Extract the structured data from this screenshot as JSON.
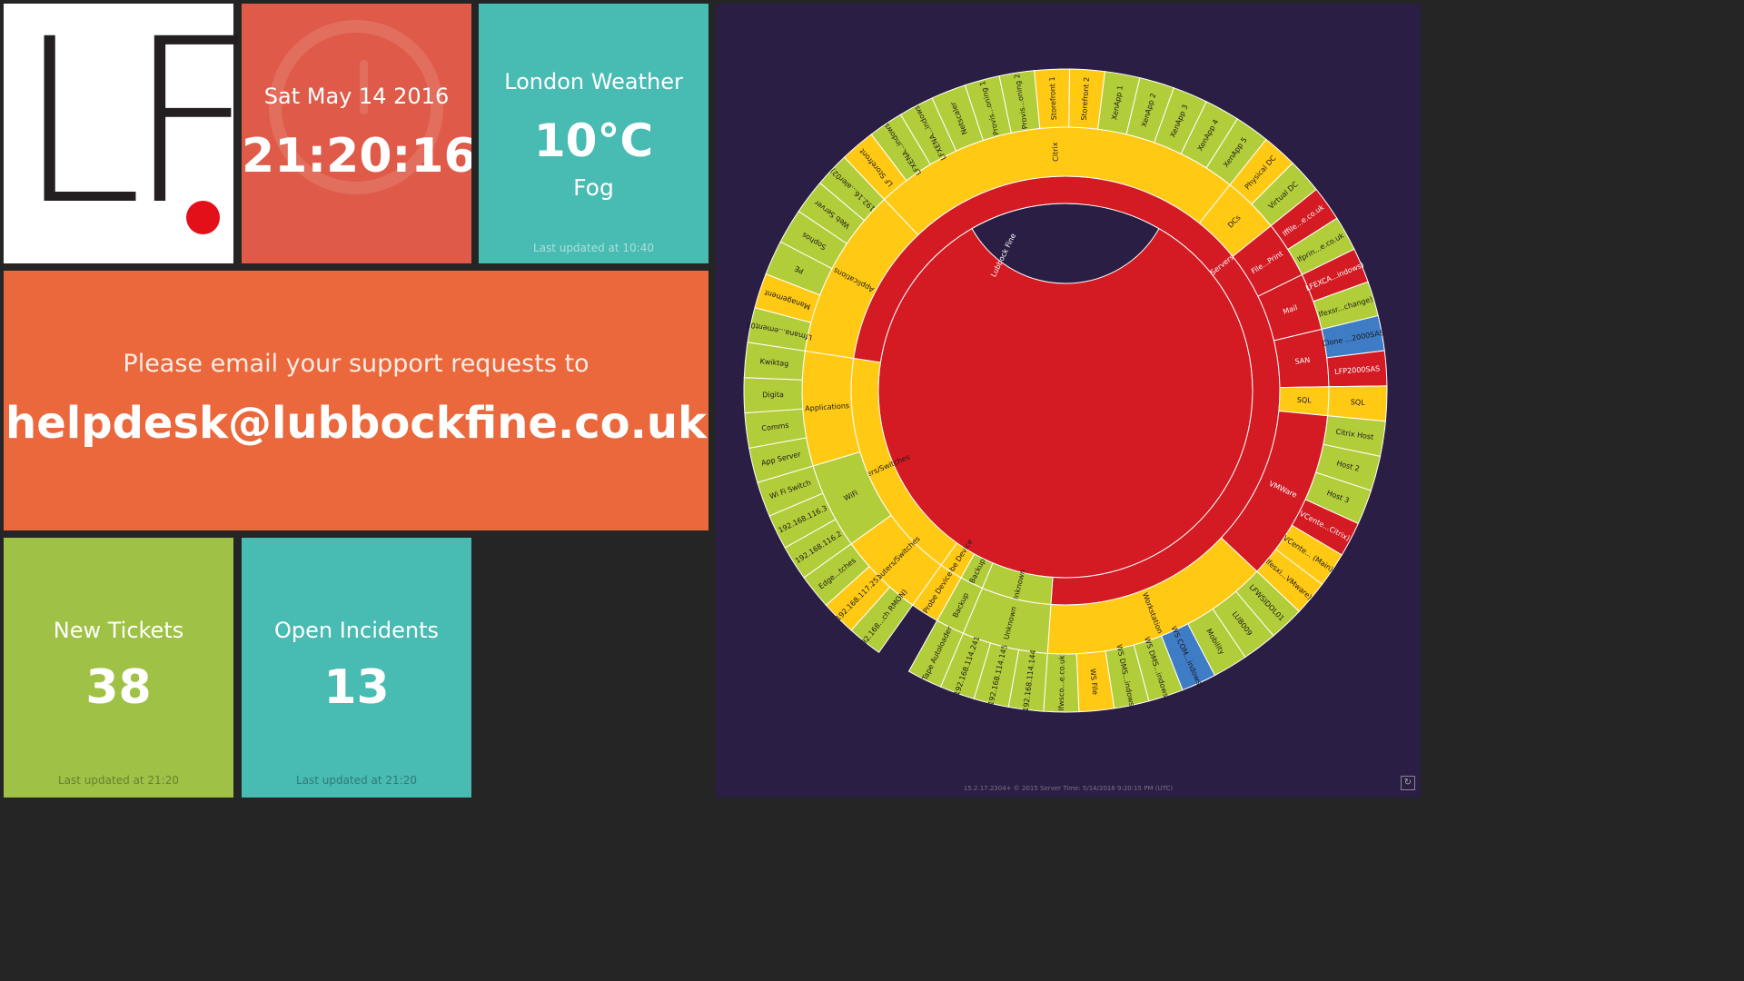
{
  "logo": {
    "letters": "LF"
  },
  "clock": {
    "date": "Sat May 14 2016",
    "time": "21:20:16"
  },
  "weather": {
    "title": "London Weather",
    "temp": "10°C",
    "condition": "Fog",
    "updated": "Last updated at 10:40"
  },
  "email": {
    "message": "Please email your support requests to",
    "address": "helpdesk@lubbockfine.co.uk"
  },
  "tickets": {
    "label": "New Tickets",
    "value": "38",
    "updated": "Last updated at 21:20"
  },
  "incidents": {
    "label": "Open Incidents",
    "value": "13",
    "updated": "Last updated at 21:20"
  },
  "footer": {
    "text": "15.2.17.2304+ © 2015 Server Time: 5/14/2016 9:20:15 PM (UTC)"
  },
  "colors": {
    "green": "#b2cd3a",
    "yellow": "#ffc914",
    "red": "#d41a22",
    "blue": "#3e7cc6",
    "panel": "#2b1e44"
  },
  "sunburst": {
    "root": "Lubbock Fine",
    "groups": [
      {
        "name": "Servers",
        "color": "red",
        "children": [
          {
            "name": "Applications",
            "color": "yellow",
            "children": [
              {
                "name": "Lfmana...ement02",
                "color": "green"
              },
              {
                "name": "Management",
                "color": "yellow"
              },
              {
                "name": "PE",
                "color": "green"
              },
              {
                "name": "Sophos",
                "color": "green"
              },
              {
                "name": "Web Server",
                "color": "green"
              },
              {
                "name": "192.16...aler02)",
                "color": "green"
              }
            ]
          },
          {
            "name": "Citrix",
            "color": "yellow",
            "children": [
              {
                "name": "LF Storefront",
                "color": "yellow"
              },
              {
                "name": "LFXENA...indows)",
                "color": "green"
              },
              {
                "name": "LFXENA...indows)",
                "color": "green"
              },
              {
                "name": "Netscaler",
                "color": "green"
              },
              {
                "name": "Provis...oning 1",
                "color": "green"
              },
              {
                "name": "Provis...oning 2",
                "color": "green"
              },
              {
                "name": "Storefront 1",
                "color": "yellow"
              },
              {
                "name": "Storefront 2",
                "color": "yellow"
              },
              {
                "name": "XenApp 1",
                "color": "green"
              },
              {
                "name": "XenApp 2",
                "color": "green"
              },
              {
                "name": "XenApp 3",
                "color": "green"
              },
              {
                "name": "XenApp 4",
                "color": "green"
              },
              {
                "name": "XenApp 5",
                "color": "green"
              }
            ]
          },
          {
            "name": "DCs",
            "color": "yellow",
            "children": [
              {
                "name": "Physical DC",
                "color": "yellow"
              },
              {
                "name": "Virtual DC",
                "color": "green"
              }
            ]
          },
          {
            "name": "File...Print",
            "color": "red",
            "children": [
              {
                "name": "lffile...e.co.uk",
                "color": "red"
              },
              {
                "name": "lfprin...e.co.uk",
                "color": "green"
              }
            ]
          },
          {
            "name": "Mail",
            "color": "red",
            "children": [
              {
                "name": "LFEXCA...indows)",
                "color": "red"
              },
              {
                "name": "lfexsr...change)",
                "color": "green"
              }
            ]
          },
          {
            "name": "SAN",
            "color": "red",
            "children": [
              {
                "name": "Clone ...2000SAS",
                "color": "blue"
              },
              {
                "name": "LFP2000SAS",
                "color": "red"
              }
            ]
          },
          {
            "name": "SQL",
            "color": "yellow",
            "children": [
              {
                "name": "SQL",
                "color": "yellow"
              }
            ]
          },
          {
            "name": "VMWare",
            "color": "red",
            "children": [
              {
                "name": "Citrix Host",
                "color": "green"
              },
              {
                "name": "Host 2",
                "color": "green"
              },
              {
                "name": "Host 3",
                "color": "green"
              },
              {
                "name": "VCente...Citrix)",
                "color": "red"
              },
              {
                "name": "VCente... (Main)",
                "color": "yellow"
              },
              {
                "name": "lfesxi...VMware)",
                "color": "yellow"
              }
            ]
          },
          {
            "name": "Workstation",
            "color": "yellow",
            "children": [
              {
                "name": "LFWSIDOL01",
                "color": "green"
              },
              {
                "name": "LUB009",
                "color": "green"
              },
              {
                "name": "Mobility",
                "color": "green"
              },
              {
                "name": "WS COM...indows)",
                "color": "blue"
              },
              {
                "name": "WS DMS...indows)",
                "color": "green"
              },
              {
                "name": "WS DMS...indows)",
                "color": "green"
              },
              {
                "name": "WS File",
                "color": "yellow"
              },
              {
                "name": "lfwsco...e.co.uk",
                "color": "green"
              }
            ]
          }
        ]
      },
      {
        "name": "Unknown",
        "color": "green",
        "children": [
          {
            "name": "Unknown",
            "color": "green",
            "children": [
              {
                "name": "192.168.114.144",
                "color": "green"
              },
              {
                "name": "192.168.114.145",
                "color": "green"
              },
              {
                "name": "192.168.114.241",
                "color": "green"
              }
            ]
          }
        ]
      },
      {
        "name": "Backup",
        "color": "green",
        "children": [
          {
            "name": "Backup",
            "color": "green",
            "children": [
              {
                "name": "Tape Autoloader",
                "color": "green"
              }
            ]
          }
        ]
      },
      {
        "name": "Probe Device",
        "color": "yellow",
        "children": [
          {
            "name": "Probe Device",
            "color": "yellow",
            "children": []
          }
        ]
      },
      {
        "name": "Routers/Switches",
        "color": "yellow",
        "children": [
          {
            "name": "Routers/Switches",
            "color": "yellow",
            "children": [
              {
                "name": "192.168...ch RMON)",
                "color": "green"
              },
              {
                "name": "192.168.117.251",
                "color": "yellow"
              },
              {
                "name": "Edge...tches",
                "color": "green"
              }
            ]
          },
          {
            "name": "WiFi",
            "color": "green",
            "children": [
              {
                "name": "192.168.116.2",
                "color": "green"
              },
              {
                "name": "192.168.116.3",
                "color": "green"
              },
              {
                "name": "Wi Fi Switch",
                "color": "green"
              }
            ]
          },
          {
            "name": "Applications",
            "color": "yellow",
            "children": [
              {
                "name": "App Server",
                "color": "green"
              },
              {
                "name": "Comms",
                "color": "green"
              },
              {
                "name": "Digita",
                "color": "green"
              },
              {
                "name": "Kwiktag",
                "color": "green"
              }
            ]
          }
        ]
      }
    ]
  }
}
